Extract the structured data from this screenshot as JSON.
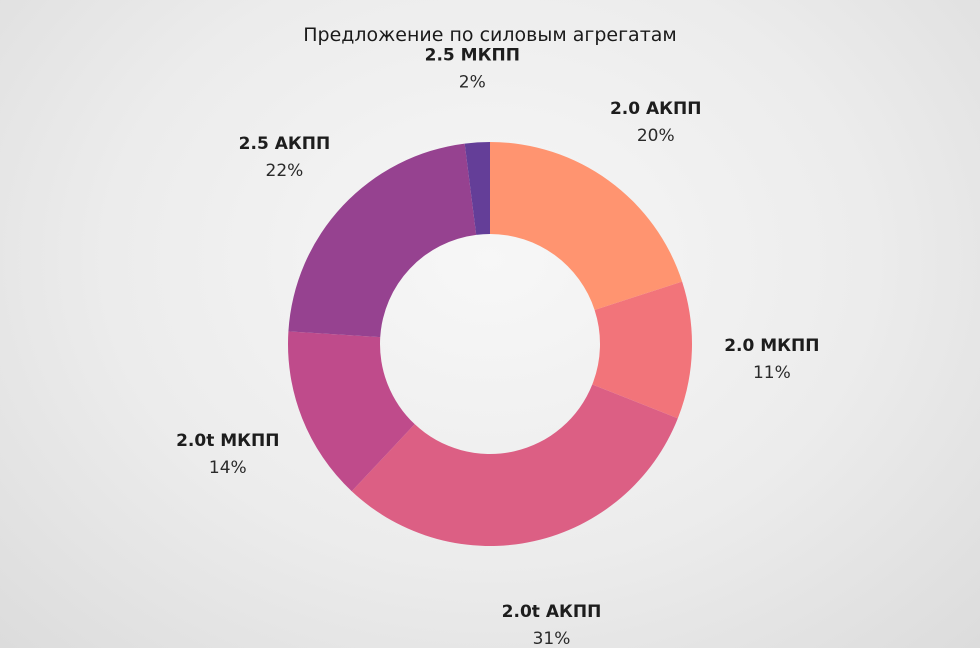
{
  "chart_data": {
    "type": "pie",
    "variant": "donut",
    "title": "Предложение по силовым агрегатам",
    "slices": [
      {
        "label": "2.0 АКПП",
        "value": 20,
        "value_label": "20%",
        "color": "#ff9470"
      },
      {
        "label": "2.0 МКПП",
        "value": 11,
        "value_label": "11%",
        "color": "#f2747a"
      },
      {
        "label": "2.0t АКПП",
        "value": 31,
        "value_label": "31%",
        "color": "#dc5f84"
      },
      {
        "label": "2.0t МКПП",
        "value": 14,
        "value_label": "14%",
        "color": "#bf4b8b"
      },
      {
        "label": "2.5 АКПП",
        "value": 22,
        "value_label": "22%",
        "color": "#964290"
      },
      {
        "label": "2.5 МКПП",
        "value": 2,
        "value_label": "2%",
        "color": "#643e98"
      }
    ],
    "legend": "none"
  }
}
